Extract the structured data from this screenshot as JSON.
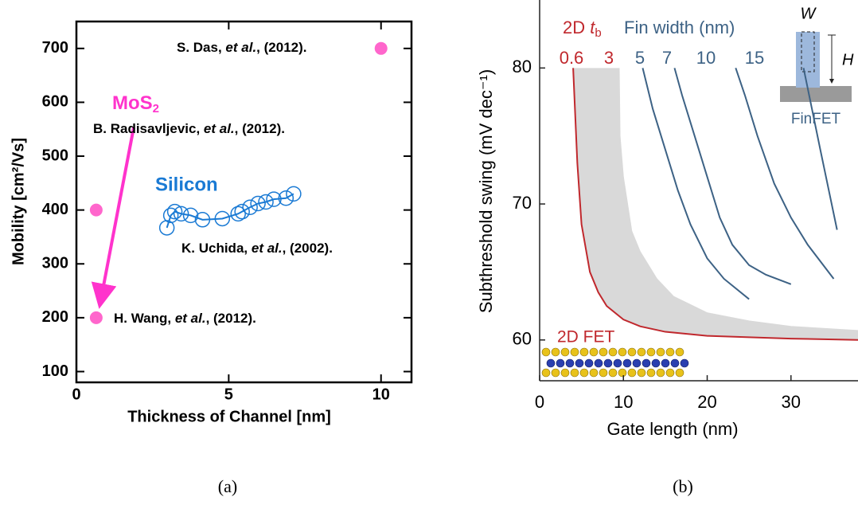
{
  "chart_data": [
    {
      "type": "scatter",
      "x_label": "Thickness of Channel [nm]",
      "y_label": "Mobility [cm²/Vs]",
      "xlim": [
        0,
        11
      ],
      "ylim": [
        80,
        750
      ],
      "xticks": [
        0,
        5,
        10
      ],
      "yticks": [
        100,
        200,
        300,
        400,
        500,
        600,
        700
      ],
      "series": [
        {
          "color": "#ff66cc",
          "x": [
            10,
            0.65,
            0.65
          ],
          "values": [
            700,
            400,
            200
          ]
        },
        {
          "name": "Silicon",
          "color": "#1a7ad4",
          "x": [
            2.97,
            3.1,
            3.23,
            3.44,
            3.75,
            4.14,
            4.79,
            5.31,
            5.44,
            5.7,
            5.96,
            6.22,
            6.48,
            6.88,
            7.13
          ],
          "values": [
            367,
            390,
            397,
            393,
            390,
            382,
            384,
            393,
            397,
            405,
            412,
            415,
            420,
            422,
            430
          ]
        }
      ],
      "mos2_label": [
        "MoS",
        "2"
      ],
      "annotations": [
        {
          "text": [
            "S. Das, ",
            "et al.",
            ", (2012)."
          ]
        },
        {
          "text": [
            "B. Radisavljevic, ",
            "et al.",
            ", (2012)."
          ]
        },
        {
          "text": [
            "K. Uchida, ",
            "et al.",
            ", (2002)."
          ]
        },
        {
          "text": [
            "H. Wang, ",
            "et al.",
            ", (2012)."
          ]
        }
      ]
    },
    {
      "type": "line",
      "x_label": "Gate length (nm)",
      "y_label": "Subthreshold swing (mV dec⁻¹)",
      "xlim": [
        0,
        38
      ],
      "ylim": [
        57,
        85
      ],
      "xticks": [
        0,
        10,
        20,
        30
      ],
      "yticks": [
        60,
        70,
        80
      ],
      "tb_header": [
        "2D ",
        "t",
        "b"
      ],
      "fin_header": "Fin width (nm)",
      "series": [
        {
          "name": "0.6",
          "color": "#c0282d",
          "x": [
            4,
            4.5,
            5,
            6,
            7,
            8,
            10,
            12,
            15,
            20,
            25,
            30,
            38
          ],
          "values": [
            80,
            73,
            68.5,
            65,
            63.5,
            62.5,
            61.5,
            61,
            60.6,
            60.3,
            60.2,
            60.1,
            60
          ]
        },
        {
          "name": "3",
          "color": "#d9d9d9",
          "fill": true,
          "x": [
            9.5,
            9.6,
            10,
            11,
            12,
            14,
            16,
            20,
            25,
            30,
            38
          ],
          "values": [
            80,
            75,
            72,
            68,
            66.5,
            64.5,
            63.2,
            62,
            61.4,
            61,
            60.7
          ]
        },
        {
          "name": "5",
          "color": "#3d6285",
          "x": [
            12.3,
            13.5,
            15,
            16.5,
            18,
            20,
            22,
            25
          ],
          "values": [
            80,
            77,
            74,
            71,
            68.5,
            66,
            64.5,
            63
          ]
        },
        {
          "name": "7",
          "color": "#3d6285",
          "x": [
            16.1,
            17,
            18.5,
            20,
            21.5,
            23,
            25,
            27,
            30
          ],
          "values": [
            80,
            78,
            75,
            72,
            69,
            67,
            65.5,
            64.8,
            64.1
          ]
        },
        {
          "name": "10",
          "color": "#3d6285",
          "x": [
            23.4,
            24.5,
            26,
            28,
            30,
            32,
            35.1
          ],
          "values": [
            80,
            78,
            75,
            71.5,
            69,
            67,
            64.5
          ]
        },
        {
          "name": "15",
          "color": "#3d6285",
          "x": [
            31.5,
            32.5,
            33.5,
            35.5
          ],
          "values": [
            80,
            77,
            74,
            68.1
          ]
        }
      ],
      "inset": {
        "w": "W",
        "h": "H",
        "label": "FinFET"
      },
      "lattice_label": "2D FET"
    }
  ],
  "captions": [
    "(a)",
    "(b)"
  ]
}
